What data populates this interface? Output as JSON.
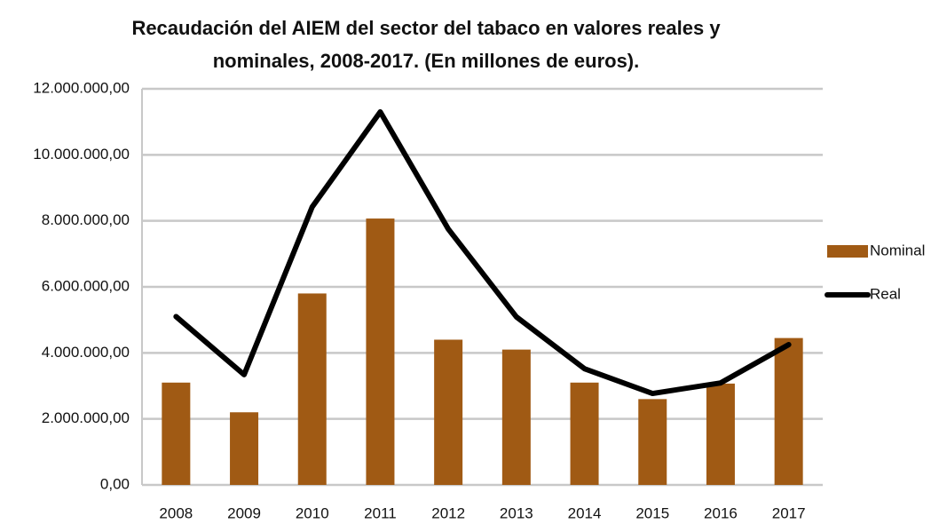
{
  "chart_data": {
    "type": "bar_line",
    "title": [
      "Recaudación del AIEM del sector del tabaco en valores reales y",
      "nominales, 2008-2017. (En millones de euros)."
    ],
    "categories": [
      "2008",
      "2009",
      "2010",
      "2011",
      "2012",
      "2013",
      "2014",
      "2015",
      "2016",
      "2017"
    ],
    "series": [
      {
        "name": "Nominal",
        "type": "bar",
        "color": "#a05a14",
        "values": [
          3100000,
          2200000,
          5800000,
          8070000,
          4400000,
          4100000,
          3100000,
          2600000,
          3070000,
          4450000
        ]
      },
      {
        "name": "Real",
        "type": "line",
        "color": "#000000",
        "values": [
          5100000,
          3340000,
          8420000,
          11300000,
          7750000,
          5090000,
          3520000,
          2770000,
          3090000,
          4250000
        ]
      }
    ],
    "ylim": [
      0,
      12000000
    ],
    "yticks": [
      {
        "value": 0,
        "label": "0,00"
      },
      {
        "value": 2000000,
        "label": "2.000.000,00"
      },
      {
        "value": 4000000,
        "label": "4.000.000,00"
      },
      {
        "value": 6000000,
        "label": "6.000.000,00"
      },
      {
        "value": 8000000,
        "label": "8.000.000,00"
      },
      {
        "value": 10000000,
        "label": "10.000.000,00"
      },
      {
        "value": 12000000,
        "label": "12.000.000,00"
      }
    ],
    "grid": true,
    "legend": "right"
  }
}
